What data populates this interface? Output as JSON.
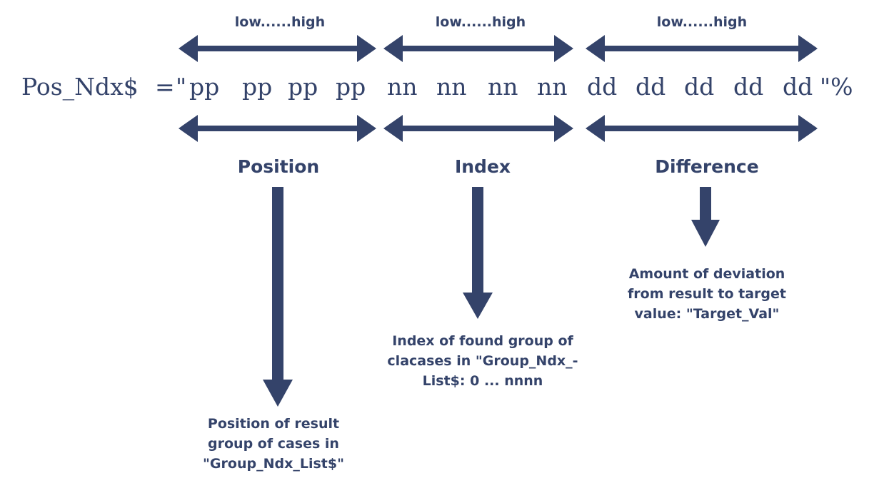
{
  "scale_label": "low......high",
  "formula": {
    "lhs": "Pos_Ndx$",
    "equals": "=",
    "open_quote": "\"",
    "pos_groups": [
      "pp",
      "pp",
      "pp",
      "pp"
    ],
    "ndx_groups": [
      "nn",
      "nn",
      "nn",
      "nn"
    ],
    "diff_groups": [
      "dd",
      "dd",
      "dd",
      "dd",
      "dd"
    ],
    "close": "\"%"
  },
  "sections": {
    "position": {
      "label": "Position",
      "description": [
        "Position of result",
        "group of cases in",
        "\"Group_Ndx_List$\""
      ]
    },
    "index": {
      "label": "Index",
      "description": [
        "Index of found group of",
        "clacases in \"Group_Ndx_-",
        "List$: 0 ... nnnn"
      ]
    },
    "difference": {
      "label": "Difference",
      "description": [
        "Amount of deviation",
        "from result to target",
        "value: \"Target_Val\""
      ]
    }
  },
  "colors": {
    "ink": "#34436a",
    "background": "#ffffff"
  }
}
